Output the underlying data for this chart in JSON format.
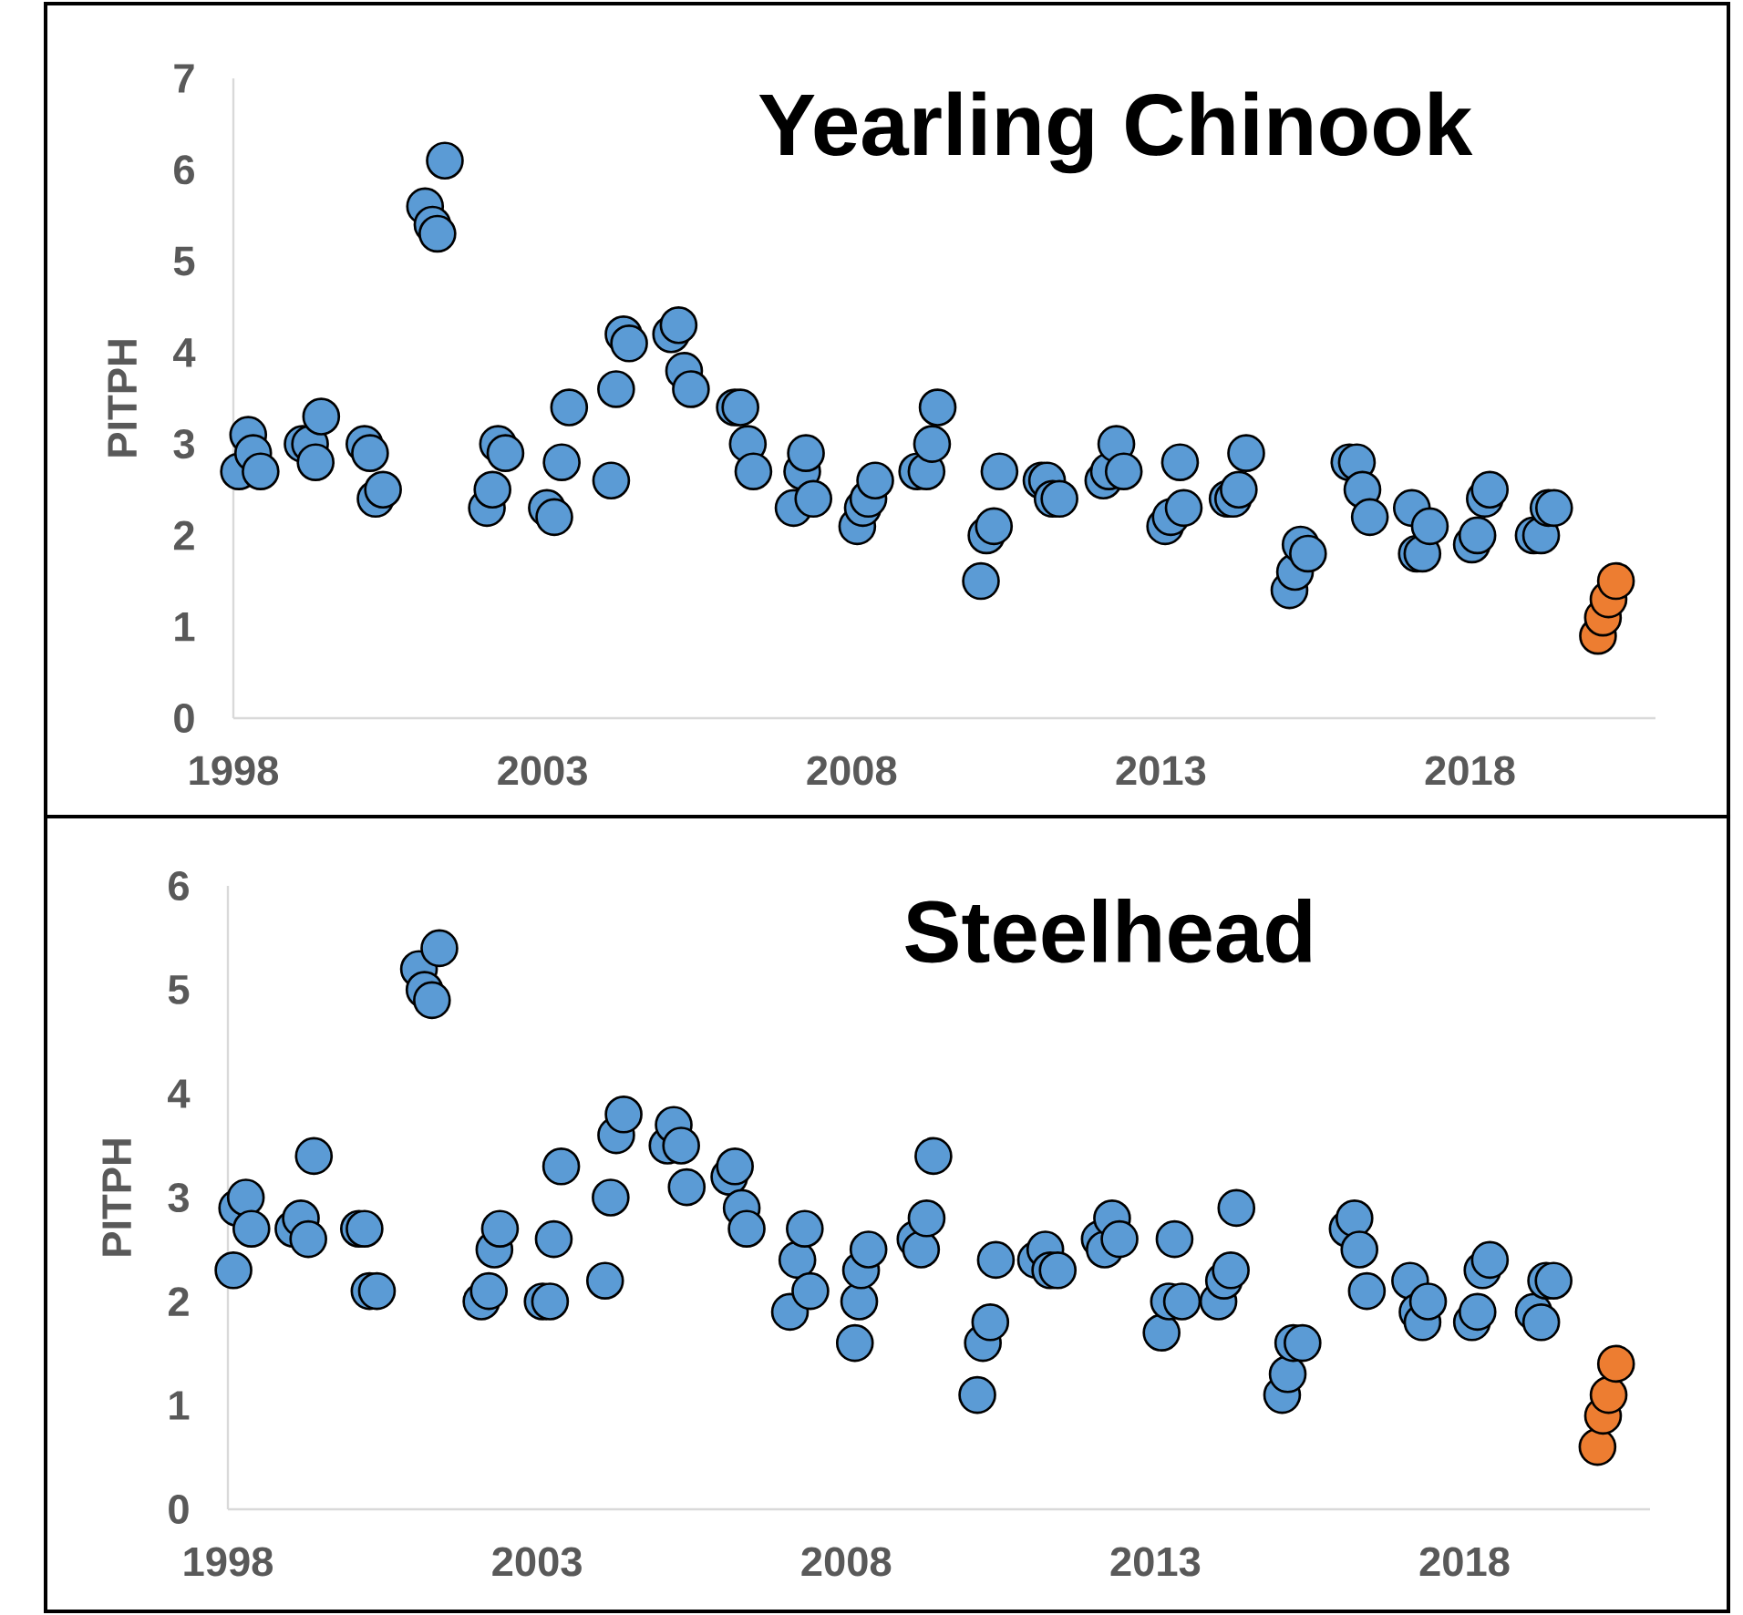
{
  "chart_data": [
    {
      "type": "scatter",
      "title": "Yearling Chinook",
      "ylabel": "PITPH",
      "xlim": [
        1998,
        2021
      ],
      "xticks": [
        1998,
        2003,
        2008,
        2013,
        2018
      ],
      "ylim": [
        0,
        7
      ],
      "yticks": [
        0,
        1,
        2,
        3,
        4,
        5,
        6,
        7
      ],
      "marker": "circle",
      "series": [
        {
          "color": "#5b9bd5",
          "x": [
            1998.09,
            1998.24,
            1998.32,
            1998.44,
            1999.12,
            1999.24,
            1999.33,
            1999.42,
            2000.12,
            2000.21,
            2000.3,
            2000.42,
            2001.1,
            2001.22,
            2001.3,
            2001.42,
            2002.1,
            2002.19,
            2002.28,
            2002.4,
            2003.07,
            2003.19,
            2003.31,
            2003.43,
            2004.11,
            2004.19,
            2004.31,
            2004.4,
            2005.08,
            2005.2,
            2005.29,
            2005.4,
            2006.11,
            2006.2,
            2006.32,
            2006.41,
            2007.06,
            2007.2,
            2007.26,
            2007.38,
            2008.09,
            2008.18,
            2008.27,
            2008.38,
            2009.06,
            2009.21,
            2009.3,
            2009.39,
            2010.09,
            2010.18,
            2010.3,
            2010.39,
            2011.07,
            2011.16,
            2011.25,
            2011.36,
            2012.07,
            2012.16,
            2012.28,
            2012.4,
            2013.07,
            2013.16,
            2013.31,
            2013.37,
            2014.08,
            2014.17,
            2014.26,
            2014.38,
            2015.08,
            2015.17,
            2015.26,
            2015.38,
            2016.05,
            2016.17,
            2016.26,
            2016.38,
            2017.06,
            2017.14,
            2017.23,
            2017.35,
            2018.03,
            2018.12,
            2018.24,
            2018.32,
            2019.03,
            2019.15,
            2019.27,
            2019.36
          ],
          "values": [
            2.7,
            3.1,
            2.9,
            2.7,
            3.0,
            3.0,
            2.8,
            3.3,
            3.0,
            2.9,
            2.4,
            2.5,
            5.6,
            5.4,
            5.3,
            6.1,
            2.3,
            2.5,
            3.0,
            2.9,
            2.3,
            2.2,
            2.8,
            3.4,
            2.6,
            3.6,
            4.2,
            4.1,
            4.2,
            4.3,
            3.8,
            3.6,
            3.4,
            3.4,
            3.0,
            2.7,
            2.3,
            2.7,
            2.9,
            2.4,
            2.1,
            2.3,
            2.4,
            2.6,
            2.7,
            2.7,
            3.0,
            3.4,
            1.5,
            2.0,
            2.1,
            2.7,
            2.6,
            2.6,
            2.4,
            2.4,
            2.6,
            2.7,
            3.0,
            2.7,
            2.1,
            2.2,
            2.8,
            2.3,
            2.4,
            2.4,
            2.5,
            2.9,
            1.4,
            1.6,
            1.9,
            1.8,
            2.8,
            2.8,
            2.5,
            2.2,
            2.3,
            1.8,
            1.8,
            2.1,
            1.9,
            2.0,
            2.4,
            2.5,
            2.0,
            2.0,
            2.3,
            2.3
          ]
        },
        {
          "color": "#ed7d31",
          "x": [
            2020.07,
            2020.15,
            2020.24,
            2020.36
          ],
          "values": [
            0.9,
            1.1,
            1.3,
            1.5
          ]
        }
      ]
    },
    {
      "type": "scatter",
      "title": "Steelhead",
      "ylabel": "PITPH",
      "xlim": [
        1998,
        2021
      ],
      "xticks": [
        1998,
        2003,
        2008,
        2013,
        2018
      ],
      "ylim": [
        0,
        6
      ],
      "yticks": [
        0,
        1,
        2,
        3,
        4,
        5,
        6
      ],
      "marker": "circle",
      "series": [
        {
          "color": "#5b9bd5",
          "x": [
            1998.09,
            1998.15,
            1998.29,
            1998.38,
            1999.06,
            1999.18,
            1999.3,
            1999.39,
            2000.12,
            2000.21,
            2000.29,
            2000.41,
            2001.09,
            2001.18,
            2001.3,
            2001.42,
            2002.1,
            2002.22,
            2002.31,
            2002.4,
            2003.09,
            2003.21,
            2003.27,
            2003.39,
            2004.1,
            2004.19,
            2004.28,
            2004.4,
            2005.11,
            2005.21,
            2005.33,
            2005.42,
            2006.11,
            2006.2,
            2006.31,
            2006.39,
            2007.09,
            2007.21,
            2007.33,
            2007.42,
            2008.14,
            2008.21,
            2008.24,
            2008.36,
            2009.12,
            2009.21,
            2009.3,
            2009.41,
            2010.12,
            2010.21,
            2010.33,
            2010.42,
            2011.07,
            2011.22,
            2011.3,
            2011.42,
            2012.1,
            2012.18,
            2012.3,
            2012.42,
            2013.1,
            2013.22,
            2013.31,
            2013.43,
            2014.02,
            2014.11,
            2014.22,
            2014.31,
            2015.05,
            2015.14,
            2015.23,
            2015.38,
            2016.11,
            2016.22,
            2016.3,
            2016.42,
            2017.12,
            2017.24,
            2017.32,
            2017.41,
            2018.12,
            2018.21,
            2018.29,
            2018.41,
            2019.12,
            2019.24,
            2019.32,
            2019.44
          ],
          "values": [
            2.3,
            2.9,
            3.0,
            2.7,
            2.7,
            2.8,
            2.6,
            3.4,
            2.7,
            2.7,
            2.1,
            2.1,
            5.2,
            5.0,
            4.9,
            5.4,
            2.0,
            2.1,
            2.5,
            2.7,
            2.0,
            2.0,
            2.6,
            3.3,
            2.2,
            3.0,
            3.6,
            3.8,
            3.5,
            3.7,
            3.5,
            3.1,
            3.2,
            3.3,
            2.9,
            2.7,
            1.9,
            2.4,
            2.7,
            2.1,
            1.6,
            2.0,
            2.3,
            2.5,
            2.6,
            2.5,
            2.8,
            3.4,
            1.1,
            1.6,
            1.8,
            2.4,
            2.4,
            2.5,
            2.3,
            2.3,
            2.6,
            2.5,
            2.8,
            2.6,
            1.7,
            2.0,
            2.6,
            2.0,
            2.0,
            2.2,
            2.3,
            2.9,
            1.1,
            1.3,
            1.6,
            1.6,
            2.7,
            2.8,
            2.5,
            2.1,
            2.2,
            1.9,
            1.8,
            2.0,
            1.8,
            1.9,
            2.3,
            2.4,
            1.9,
            1.8,
            2.2,
            2.2
          ]
        },
        {
          "color": "#ed7d31",
          "x": [
            2020.15,
            2020.24,
            2020.33,
            2020.45
          ],
          "values": [
            0.6,
            0.9,
            1.1,
            1.4
          ]
        }
      ]
    }
  ]
}
